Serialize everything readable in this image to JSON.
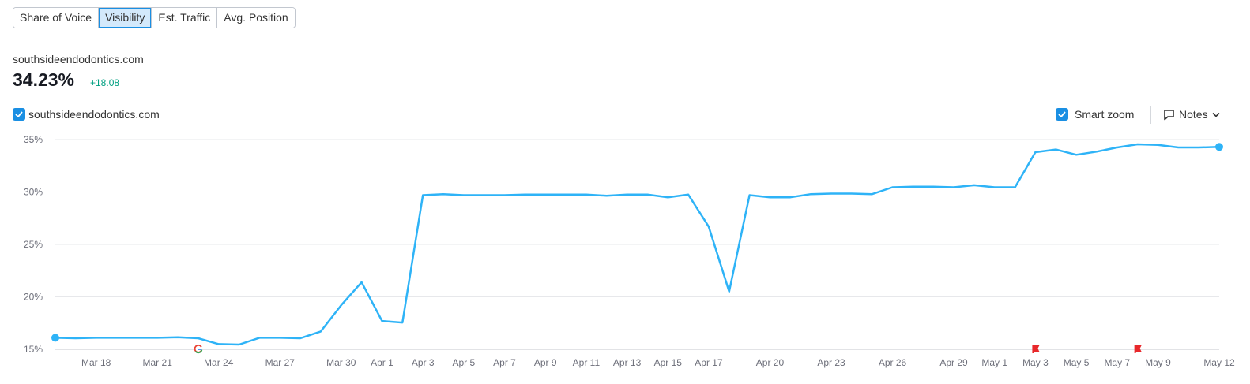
{
  "tabs": [
    {
      "label": "Share of Voice",
      "active": false
    },
    {
      "label": "Visibility",
      "active": true
    },
    {
      "label": "Est. Traffic",
      "active": false
    },
    {
      "label": "Avg. Position",
      "active": false
    }
  ],
  "summary": {
    "domain": "southsideendodontics.com",
    "value": "34.23%",
    "change": "+18.08"
  },
  "legend": {
    "label": "southsideendodontics.com",
    "checked": true,
    "color": "#2eb3f7"
  },
  "controls": {
    "smart_zoom_label": "Smart zoom",
    "smart_zoom_checked": true,
    "notes_label": "Notes"
  },
  "colors": {
    "accent": "#1a8fe3",
    "series": "#2eb3f7",
    "positive": "#009f81",
    "marker": "#e8282b"
  },
  "chart_data": {
    "type": "line",
    "ylim": [
      15,
      35
    ],
    "y_ticks": [
      "15%",
      "20%",
      "25%",
      "30%",
      "35%"
    ],
    "y_tick_values": [
      15,
      20,
      25,
      30,
      35
    ],
    "x_ticks": [
      "Mar 18",
      "Mar 21",
      "Mar 24",
      "Mar 27",
      "Mar 30",
      "Apr 1",
      "Apr 3",
      "Apr 5",
      "Apr 7",
      "Apr 9",
      "Apr 11",
      "Apr 13",
      "Apr 15",
      "Apr 17",
      "Apr 20",
      "Apr 23",
      "Apr 26",
      "Apr 29",
      "May 1",
      "May 3",
      "May 5",
      "May 7",
      "May 9",
      "May 12"
    ],
    "grid": true,
    "series": [
      {
        "name": "southsideendodontics.com",
        "x": [
          "Mar 16",
          "Mar 17",
          "Mar 18",
          "Mar 19",
          "Mar 20",
          "Mar 21",
          "Mar 22",
          "Mar 23",
          "Mar 24",
          "Mar 25",
          "Mar 26",
          "Mar 27",
          "Mar 28",
          "Mar 29",
          "Mar 30",
          "Mar 31",
          "Apr 1",
          "Apr 2",
          "Apr 3",
          "Apr 4",
          "Apr 5",
          "Apr 6",
          "Apr 7",
          "Apr 8",
          "Apr 9",
          "Apr 10",
          "Apr 11",
          "Apr 12",
          "Apr 13",
          "Apr 14",
          "Apr 15",
          "Apr 16",
          "Apr 17",
          "Apr 18",
          "Apr 19",
          "Apr 20",
          "Apr 21",
          "Apr 22",
          "Apr 23",
          "Apr 24",
          "Apr 25",
          "Apr 26",
          "Apr 27",
          "Apr 28",
          "Apr 29",
          "Apr 30",
          "May 1",
          "May 2",
          "May 3",
          "May 4",
          "May 5",
          "May 6",
          "May 7",
          "May 8",
          "May 9",
          "May 10",
          "May 11",
          "May 12"
        ],
        "values": [
          16.1,
          16.05,
          16.1,
          16.1,
          16.1,
          16.1,
          16.15,
          16.05,
          15.5,
          15.45,
          16.1,
          16.1,
          16.05,
          16.7,
          19.2,
          21.4,
          17.7,
          17.55,
          29.7,
          29.8,
          29.7,
          29.7,
          29.7,
          29.75,
          29.75,
          29.75,
          29.75,
          29.65,
          29.75,
          29.75,
          29.5,
          29.75,
          26.7,
          20.5,
          29.7,
          29.5,
          29.5,
          29.8,
          29.85,
          29.85,
          29.8,
          30.45,
          30.5,
          30.5,
          30.45,
          30.65,
          30.45,
          30.45,
          33.8,
          34.05,
          33.55,
          33.85,
          34.25,
          34.55,
          34.5,
          34.25,
          34.25,
          34.3
        ]
      }
    ],
    "event_markers": [
      {
        "type": "google-update",
        "x": "Mar 23"
      },
      {
        "type": "note-flag",
        "x": "May 3"
      },
      {
        "type": "note-flag",
        "x": "May 8"
      }
    ]
  }
}
